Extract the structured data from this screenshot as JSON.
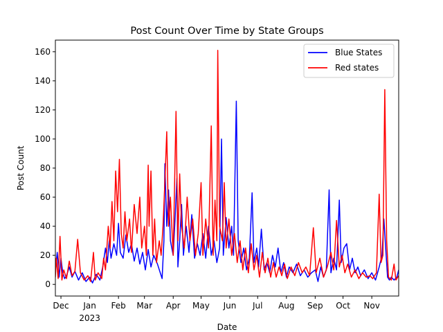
{
  "chart_data": {
    "type": "line",
    "title": "Post Count Over Time by State Groups",
    "xlabel": "Date",
    "ylabel": "Post Count",
    "xlim": [
      "2022-11-25",
      "2023-11-30"
    ],
    "ylim": [
      -8,
      168
    ],
    "yticks": [
      0,
      20,
      40,
      60,
      80,
      100,
      120,
      140,
      160
    ],
    "xticks": [
      {
        "date": "2022-12-01",
        "label": "Dec",
        "sublabel": ""
      },
      {
        "date": "2023-01-01",
        "label": "Jan",
        "sublabel": "2023"
      },
      {
        "date": "2023-02-01",
        "label": "Feb",
        "sublabel": ""
      },
      {
        "date": "2023-03-01",
        "label": "Mar",
        "sublabel": ""
      },
      {
        "date": "2023-04-01",
        "label": "Apr",
        "sublabel": ""
      },
      {
        "date": "2023-05-01",
        "label": "May",
        "sublabel": ""
      },
      {
        "date": "2023-06-01",
        "label": "Jun",
        "sublabel": ""
      },
      {
        "date": "2023-07-01",
        "label": "Jul",
        "sublabel": ""
      },
      {
        "date": "2023-08-01",
        "label": "Aug",
        "sublabel": ""
      },
      {
        "date": "2023-09-01",
        "label": "Sep",
        "sublabel": ""
      },
      {
        "date": "2023-10-01",
        "label": "Oct",
        "sublabel": ""
      },
      {
        "date": "2023-11-01",
        "label": "Nov",
        "sublabel": ""
      }
    ],
    "grid": false,
    "legend_position": "top-right",
    "series": [
      {
        "name": "Blue States",
        "color": "#0000ff",
        "points": [
          [
            "2022-11-25",
            10
          ],
          [
            "2022-11-27",
            22
          ],
          [
            "2022-11-29",
            5
          ],
          [
            "2022-12-01",
            18
          ],
          [
            "2022-12-03",
            8
          ],
          [
            "2022-12-05",
            4
          ],
          [
            "2022-12-07",
            6
          ],
          [
            "2022-12-10",
            12
          ],
          [
            "2022-12-13",
            5
          ],
          [
            "2022-12-16",
            9
          ],
          [
            "2022-12-20",
            3
          ],
          [
            "2022-12-24",
            8
          ],
          [
            "2022-12-28",
            2
          ],
          [
            "2023-01-01",
            5
          ],
          [
            "2023-01-04",
            1
          ],
          [
            "2023-01-08",
            7
          ],
          [
            "2023-01-12",
            3
          ],
          [
            "2023-01-15",
            12
          ],
          [
            "2023-01-18",
            25
          ],
          [
            "2023-01-20",
            15
          ],
          [
            "2023-01-22",
            30
          ],
          [
            "2023-01-24",
            18
          ],
          [
            "2023-01-27",
            28
          ],
          [
            "2023-01-30",
            20
          ],
          [
            "2023-02-01",
            42
          ],
          [
            "2023-02-03",
            22
          ],
          [
            "2023-02-06",
            18
          ],
          [
            "2023-02-09",
            34
          ],
          [
            "2023-02-12",
            22
          ],
          [
            "2023-02-15",
            28
          ],
          [
            "2023-02-18",
            16
          ],
          [
            "2023-02-21",
            25
          ],
          [
            "2023-02-24",
            14
          ],
          [
            "2023-02-27",
            22
          ],
          [
            "2023-03-02",
            10
          ],
          [
            "2023-03-05",
            24
          ],
          [
            "2023-03-08",
            12
          ],
          [
            "2023-03-11",
            20
          ],
          [
            "2023-03-15",
            14
          ],
          [
            "2023-03-18",
            8
          ],
          [
            "2023-03-20",
            4
          ],
          [
            "2023-03-22",
            30
          ],
          [
            "2023-03-23",
            83
          ],
          [
            "2023-03-25",
            40
          ],
          [
            "2023-03-27",
            65
          ],
          [
            "2023-03-29",
            30
          ],
          [
            "2023-04-01",
            20
          ],
          [
            "2023-04-03",
            45
          ],
          [
            "2023-04-05",
            73
          ],
          [
            "2023-04-06",
            12
          ],
          [
            "2023-04-08",
            30
          ],
          [
            "2023-04-10",
            55
          ],
          [
            "2023-04-12",
            20
          ],
          [
            "2023-04-15",
            40
          ],
          [
            "2023-04-18",
            22
          ],
          [
            "2023-04-21",
            48
          ],
          [
            "2023-04-24",
            18
          ],
          [
            "2023-04-27",
            28
          ],
          [
            "2023-04-30",
            20
          ],
          [
            "2023-05-03",
            35
          ],
          [
            "2023-05-06",
            18
          ],
          [
            "2023-05-09",
            40
          ],
          [
            "2023-05-12",
            20
          ],
          [
            "2023-05-15",
            30
          ],
          [
            "2023-05-18",
            15
          ],
          [
            "2023-05-21",
            25
          ],
          [
            "2023-05-23",
            100
          ],
          [
            "2023-05-25",
            20
          ],
          [
            "2023-05-28",
            46
          ],
          [
            "2023-05-31",
            25
          ],
          [
            "2023-06-03",
            40
          ],
          [
            "2023-06-05",
            20
          ],
          [
            "2023-06-08",
            126
          ],
          [
            "2023-06-10",
            30
          ],
          [
            "2023-06-13",
            15
          ],
          [
            "2023-06-16",
            25
          ],
          [
            "2023-06-19",
            10
          ],
          [
            "2023-06-22",
            18
          ],
          [
            "2023-06-25",
            63
          ],
          [
            "2023-06-27",
            15
          ],
          [
            "2023-06-30",
            25
          ],
          [
            "2023-07-02",
            12
          ],
          [
            "2023-07-05",
            38
          ],
          [
            "2023-07-08",
            10
          ],
          [
            "2023-07-11",
            15
          ],
          [
            "2023-07-14",
            8
          ],
          [
            "2023-07-17",
            20
          ],
          [
            "2023-07-20",
            12
          ],
          [
            "2023-07-23",
            25
          ],
          [
            "2023-07-26",
            8
          ],
          [
            "2023-07-29",
            15
          ],
          [
            "2023-08-01",
            5
          ],
          [
            "2023-08-04",
            12
          ],
          [
            "2023-08-08",
            8
          ],
          [
            "2023-08-12",
            14
          ],
          [
            "2023-08-16",
            6
          ],
          [
            "2023-08-20",
            10
          ],
          [
            "2023-08-24",
            5
          ],
          [
            "2023-08-28",
            8
          ],
          [
            "2023-09-01",
            10
          ],
          [
            "2023-09-04",
            2
          ],
          [
            "2023-09-07",
            12
          ],
          [
            "2023-09-10",
            5
          ],
          [
            "2023-09-13",
            10
          ],
          [
            "2023-09-16",
            65
          ],
          [
            "2023-09-18",
            8
          ],
          [
            "2023-09-21",
            18
          ],
          [
            "2023-09-24",
            10
          ],
          [
            "2023-09-27",
            58
          ],
          [
            "2023-09-29",
            15
          ],
          [
            "2023-10-02",
            25
          ],
          [
            "2023-10-05",
            28
          ],
          [
            "2023-10-08",
            10
          ],
          [
            "2023-10-11",
            18
          ],
          [
            "2023-10-14",
            8
          ],
          [
            "2023-10-17",
            12
          ],
          [
            "2023-10-20",
            6
          ],
          [
            "2023-10-24",
            10
          ],
          [
            "2023-10-28",
            4
          ],
          [
            "2023-11-01",
            8
          ],
          [
            "2023-11-05",
            3
          ],
          [
            "2023-11-09",
            12
          ],
          [
            "2023-11-12",
            20
          ],
          [
            "2023-11-14",
            45
          ],
          [
            "2023-11-16",
            25
          ],
          [
            "2023-11-18",
            5
          ],
          [
            "2023-11-20",
            3
          ],
          [
            "2023-11-22",
            5
          ],
          [
            "2023-11-25",
            3
          ],
          [
            "2023-11-28",
            5
          ],
          [
            "2023-11-30",
            10
          ]
        ]
      },
      {
        "name": "Red states",
        "color": "#ff0000",
        "points": [
          [
            "2022-11-25",
            5
          ],
          [
            "2022-11-26",
            18
          ],
          [
            "2022-11-28",
            4
          ],
          [
            "2022-11-30",
            33
          ],
          [
            "2022-12-02",
            3
          ],
          [
            "2022-12-04",
            10
          ],
          [
            "2022-12-07",
            4
          ],
          [
            "2022-12-10",
            16
          ],
          [
            "2022-12-13",
            6
          ],
          [
            "2022-12-16",
            9
          ],
          [
            "2022-12-19",
            31
          ],
          [
            "2022-12-22",
            8
          ],
          [
            "2022-12-26",
            3
          ],
          [
            "2022-12-30",
            6
          ],
          [
            "2023-01-02",
            2
          ],
          [
            "2023-01-05",
            22
          ],
          [
            "2023-01-07",
            3
          ],
          [
            "2023-01-10",
            8
          ],
          [
            "2023-01-14",
            4
          ],
          [
            "2023-01-16",
            18
          ],
          [
            "2023-01-18",
            10
          ],
          [
            "2023-01-21",
            40
          ],
          [
            "2023-01-23",
            25
          ],
          [
            "2023-01-25",
            57
          ],
          [
            "2023-01-27",
            30
          ],
          [
            "2023-01-29",
            78
          ],
          [
            "2023-01-31",
            50
          ],
          [
            "2023-02-02",
            86
          ],
          [
            "2023-02-04",
            35
          ],
          [
            "2023-02-06",
            25
          ],
          [
            "2023-02-08",
            50
          ],
          [
            "2023-02-10",
            30
          ],
          [
            "2023-02-13",
            45
          ],
          [
            "2023-02-15",
            22
          ],
          [
            "2023-02-18",
            55
          ],
          [
            "2023-02-21",
            35
          ],
          [
            "2023-02-24",
            60
          ],
          [
            "2023-02-26",
            25
          ],
          [
            "2023-03-01",
            40
          ],
          [
            "2023-03-03",
            20
          ],
          [
            "2023-03-05",
            82
          ],
          [
            "2023-03-06",
            40
          ],
          [
            "2023-03-08",
            78
          ],
          [
            "2023-03-10",
            20
          ],
          [
            "2023-03-12",
            45
          ],
          [
            "2023-03-14",
            15
          ],
          [
            "2023-03-17",
            30
          ],
          [
            "2023-03-19",
            20
          ],
          [
            "2023-03-21",
            40
          ],
          [
            "2023-03-23",
            70
          ],
          [
            "2023-03-25",
            105
          ],
          [
            "2023-03-27",
            40
          ],
          [
            "2023-03-29",
            60
          ],
          [
            "2023-04-01",
            20
          ],
          [
            "2023-04-04",
            119
          ],
          [
            "2023-04-06",
            30
          ],
          [
            "2023-04-08",
            76
          ],
          [
            "2023-04-10",
            40
          ],
          [
            "2023-04-13",
            25
          ],
          [
            "2023-04-16",
            60
          ],
          [
            "2023-04-19",
            30
          ],
          [
            "2023-04-22",
            45
          ],
          [
            "2023-04-25",
            20
          ],
          [
            "2023-04-28",
            35
          ],
          [
            "2023-05-01",
            70
          ],
          [
            "2023-05-03",
            20
          ],
          [
            "2023-05-06",
            45
          ],
          [
            "2023-05-09",
            25
          ],
          [
            "2023-05-12",
            109
          ],
          [
            "2023-05-14",
            20
          ],
          [
            "2023-05-16",
            58
          ],
          [
            "2023-05-18",
            30
          ],
          [
            "2023-05-19",
            161
          ],
          [
            "2023-05-21",
            40
          ],
          [
            "2023-05-24",
            30
          ],
          [
            "2023-05-26",
            70
          ],
          [
            "2023-05-28",
            25
          ],
          [
            "2023-05-31",
            45
          ],
          [
            "2023-06-03",
            20
          ],
          [
            "2023-06-06",
            35
          ],
          [
            "2023-06-09",
            15
          ],
          [
            "2023-06-12",
            30
          ],
          [
            "2023-06-15",
            10
          ],
          [
            "2023-06-18",
            25
          ],
          [
            "2023-06-21",
            8
          ],
          [
            "2023-06-24",
            28
          ],
          [
            "2023-06-27",
            10
          ],
          [
            "2023-06-30",
            20
          ],
          [
            "2023-07-03",
            5
          ],
          [
            "2023-07-06",
            22
          ],
          [
            "2023-07-09",
            8
          ],
          [
            "2023-07-12",
            18
          ],
          [
            "2023-07-15",
            5
          ],
          [
            "2023-07-18",
            15
          ],
          [
            "2023-07-21",
            5
          ],
          [
            "2023-07-24",
            12
          ],
          [
            "2023-07-27",
            6
          ],
          [
            "2023-07-30",
            14
          ],
          [
            "2023-08-02",
            4
          ],
          [
            "2023-08-06",
            12
          ],
          [
            "2023-08-10",
            6
          ],
          [
            "2023-08-14",
            15
          ],
          [
            "2023-08-18",
            8
          ],
          [
            "2023-08-22",
            12
          ],
          [
            "2023-08-26",
            6
          ],
          [
            "2023-08-30",
            39
          ],
          [
            "2023-09-02",
            8
          ],
          [
            "2023-09-06",
            18
          ],
          [
            "2023-09-10",
            5
          ],
          [
            "2023-09-14",
            12
          ],
          [
            "2023-09-18",
            22
          ],
          [
            "2023-09-21",
            10
          ],
          [
            "2023-09-24",
            44
          ],
          [
            "2023-09-27",
            12
          ],
          [
            "2023-09-30",
            20
          ],
          [
            "2023-10-03",
            8
          ],
          [
            "2023-10-06",
            14
          ],
          [
            "2023-10-10",
            5
          ],
          [
            "2023-10-14",
            10
          ],
          [
            "2023-10-18",
            4
          ],
          [
            "2023-10-22",
            8
          ],
          [
            "2023-10-26",
            5
          ],
          [
            "2023-10-30",
            6
          ],
          [
            "2023-11-02",
            4
          ],
          [
            "2023-11-06",
            8
          ],
          [
            "2023-11-09",
            62
          ],
          [
            "2023-11-11",
            15
          ],
          [
            "2023-11-13",
            20
          ],
          [
            "2023-11-15",
            134
          ],
          [
            "2023-11-17",
            30
          ],
          [
            "2023-11-19",
            5
          ],
          [
            "2023-11-22",
            3
          ],
          [
            "2023-11-25",
            14
          ],
          [
            "2023-11-27",
            3
          ],
          [
            "2023-11-30",
            6
          ]
        ]
      }
    ]
  }
}
